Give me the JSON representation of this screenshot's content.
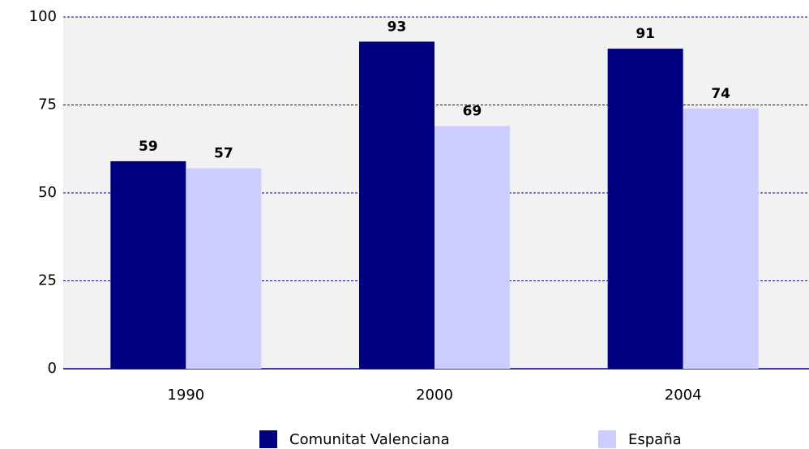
{
  "chart_data": {
    "type": "bar",
    "categories": [
      "1990",
      "2000",
      "2004"
    ],
    "series": [
      {
        "name": "Comunitat Valenciana",
        "color": "#000080",
        "values": [
          59,
          93,
          91
        ]
      },
      {
        "name": "España",
        "color": "#ccccff",
        "values": [
          57,
          69,
          74
        ]
      }
    ],
    "ylim": [
      0,
      100
    ],
    "yticks": [
      0,
      25,
      50,
      75,
      100
    ],
    "grid": true,
    "legend": "bottom"
  }
}
